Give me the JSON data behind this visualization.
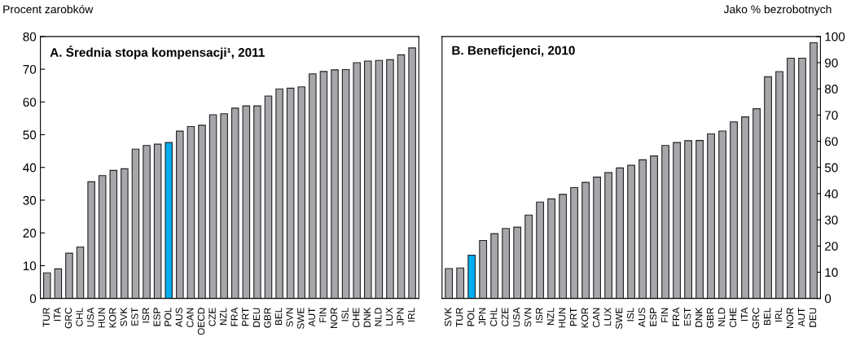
{
  "chart_data": [
    {
      "type": "bar",
      "title": "A. Średnia stopa kompensacji¹, 2011",
      "ylabel": "Procent zarobków",
      "categories": [
        "TUR",
        "ITA",
        "GRC",
        "CHL",
        "USA",
        "HUN",
        "KOR",
        "SVK",
        "EST",
        "ISR",
        "ESP",
        "POL",
        "AUS",
        "CAN",
        "OECD",
        "CZE",
        "NZL",
        "FRA",
        "PRT",
        "DEU",
        "GBR",
        "BEL",
        "SVN",
        "SWE",
        "AUT",
        "FIN",
        "NOR",
        "ISL",
        "CHE",
        "DNK",
        "NLD",
        "LUX",
        "JPN",
        "IRL"
      ],
      "values": [
        7.8,
        9,
        13.8,
        15.7,
        35.6,
        37.5,
        39.1,
        39.6,
        45.6,
        46.7,
        47.1,
        47.6,
        51.1,
        52.5,
        52.9,
        56.1,
        56.4,
        58.1,
        58.8,
        58.8,
        61.8,
        64.0,
        64.2,
        64.6,
        68.6,
        69.3,
        69.8,
        69.9,
        72.0,
        72.5,
        72.7,
        72.9,
        74.4,
        76.5
      ],
      "colors": [
        "#a6a7ab",
        "#a6a7ab",
        "#a6a7ab",
        "#a6a7ab",
        "#a6a7ab",
        "#a6a7ab",
        "#a6a7ab",
        "#a6a7ab",
        "#a6a7ab",
        "#a6a7ab",
        "#a6a7ab",
        "#00aeef",
        "#a6a7ab",
        "#a6a7ab",
        "#a6a7ab",
        "#a6a7ab",
        "#a6a7ab",
        "#a6a7ab",
        "#a6a7ab",
        "#a6a7ab",
        "#a6a7ab",
        "#a6a7ab",
        "#a6a7ab",
        "#a6a7ab",
        "#a6a7ab",
        "#a6a7ab",
        "#a6a7ab",
        "#a6a7ab",
        "#a6a7ab",
        "#a6a7ab",
        "#a6a7ab",
        "#a6a7ab",
        "#a6a7ab",
        "#a6a7ab"
      ],
      "ylim": [
        0,
        80
      ],
      "yticks": [
        0,
        10,
        20,
        30,
        40,
        50,
        60,
        70,
        80
      ],
      "grid": false,
      "legend": false
    },
    {
      "type": "bar",
      "title": "B. Beneficjenci, 2010",
      "y2label": "Jako % bezrobotnych",
      "categories": [
        "SVK",
        "TUR",
        "POL",
        "JPN",
        "CHL",
        "CZE",
        "USA",
        "SVN",
        "ISR",
        "NZL",
        "HUN",
        "PRT",
        "KOR",
        "CAN",
        "LUX",
        "SWE",
        "ISL",
        "AUS",
        "ESP",
        "FIN",
        "FRA",
        "EST",
        "DNK",
        "GBR",
        "NLD",
        "CHE",
        "ITA",
        "GRC",
        "BEL",
        "IRL",
        "NOR",
        "AUT",
        "DEU"
      ],
      "series": [
        {
          "axis": "y2",
          "values": [
            11.4,
            11.6,
            16.5,
            22.1,
            24.7,
            26.7,
            27.2,
            31.8,
            36.8,
            38.0,
            39.7,
            42.3,
            44.3,
            46.3,
            48.0,
            49.8,
            50.8,
            52.9,
            54.4,
            58.4,
            59.5,
            60.2,
            60.3,
            62.8,
            63.9,
            67.4,
            69.3,
            72.4,
            84.6,
            86.6,
            91.7,
            91.7,
            97.6
          ],
          "colors": [
            "#a6a7ab",
            "#a6a7ab",
            "#00aeef",
            "#a6a7ab",
            "#a6a7ab",
            "#a6a7ab",
            "#a6a7ab",
            "#a6a7ab",
            "#a6a7ab",
            "#a6a7ab",
            "#a6a7ab",
            "#a6a7ab",
            "#a6a7ab",
            "#a6a7ab",
            "#a6a7ab",
            "#a6a7ab",
            "#a6a7ab",
            "#a6a7ab",
            "#a6a7ab",
            "#a6a7ab",
            "#a6a7ab",
            "#a6a7ab",
            "#a6a7ab",
            "#a6a7ab",
            "#a6a7ab",
            "#a6a7ab",
            "#a6a7ab",
            "#a6a7ab",
            "#a6a7ab",
            "#a6a7ab",
            "#a6a7ab",
            "#a6a7ab",
            "#a6a7ab"
          ]
        }
      ],
      "y2lim": [
        0,
        100
      ],
      "y2ticks": [
        0,
        10,
        20,
        30,
        40,
        50,
        60,
        70,
        80,
        90,
        100
      ],
      "grid": false,
      "legend": false
    }
  ]
}
